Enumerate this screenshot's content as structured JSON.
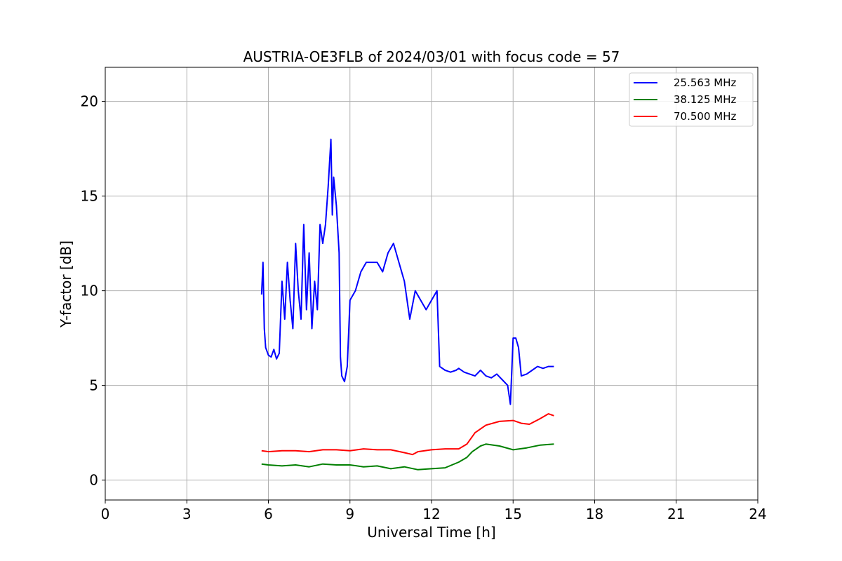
{
  "chart_data": {
    "type": "line",
    "title": "AUSTRIA-OE3FLB of 2024/03/01 with focus code = 57",
    "xlabel": "Universal Time [h]",
    "ylabel": "Y-factor [dB]",
    "xlim": [
      0,
      24
    ],
    "ylim": [
      -1.05,
      21.8
    ],
    "xticks": [
      0,
      3,
      6,
      9,
      12,
      15,
      18,
      21,
      24
    ],
    "xtick_labels": [
      "0",
      "3",
      "6",
      "9",
      "12",
      "15",
      "18",
      "21",
      "24"
    ],
    "yticks": [
      0,
      5,
      10,
      15,
      20
    ],
    "ytick_labels": [
      "0",
      "5",
      "10",
      "15",
      "20"
    ],
    "grid": true,
    "legend_position": "top-right",
    "series": [
      {
        "name": "25.563 MHz",
        "color": "#0000ff",
        "x": [
          5.75,
          5.8,
          5.85,
          5.9,
          6.0,
          6.1,
          6.2,
          6.3,
          6.4,
          6.5,
          6.6,
          6.7,
          6.8,
          6.9,
          7.0,
          7.1,
          7.2,
          7.3,
          7.4,
          7.5,
          7.6,
          7.7,
          7.8,
          7.9,
          8.0,
          8.1,
          8.2,
          8.3,
          8.35,
          8.4,
          8.5,
          8.6,
          8.65,
          8.7,
          8.8,
          8.9,
          9.0,
          9.2,
          9.4,
          9.6,
          9.8,
          10.0,
          10.2,
          10.4,
          10.6,
          10.8,
          11.0,
          11.2,
          11.4,
          11.6,
          11.8,
          12.0,
          12.2,
          12.3,
          12.5,
          12.7,
          12.9,
          13.0,
          13.2,
          13.4,
          13.6,
          13.8,
          14.0,
          14.2,
          14.4,
          14.6,
          14.8,
          14.9,
          15.0,
          15.1,
          15.2,
          15.3,
          15.5,
          15.7,
          15.9,
          16.1,
          16.3,
          16.5
        ],
        "values": [
          9.8,
          11.5,
          8.0,
          7.0,
          6.6,
          6.5,
          6.9,
          6.4,
          6.7,
          10.5,
          8.5,
          11.5,
          9.5,
          8.0,
          12.5,
          10.0,
          8.5,
          13.5,
          9.0,
          12.0,
          8.0,
          10.5,
          9.0,
          13.5,
          12.5,
          13.5,
          15.5,
          18.0,
          14.0,
          16.0,
          14.5,
          12.0,
          6.5,
          5.5,
          5.2,
          6.0,
          9.5,
          10.0,
          11.0,
          11.5,
          11.5,
          11.5,
          11.0,
          12.0,
          12.5,
          11.5,
          10.5,
          8.5,
          10.0,
          9.5,
          9.0,
          9.5,
          10.0,
          6.0,
          5.8,
          5.7,
          5.8,
          5.9,
          5.7,
          5.6,
          5.5,
          5.8,
          5.5,
          5.4,
          5.6,
          5.3,
          5.0,
          4.0,
          7.5,
          7.5,
          7.0,
          5.5,
          5.6,
          5.8,
          6.0,
          5.9,
          6.0,
          6.0
        ]
      },
      {
        "name": "38.125 MHz",
        "color": "#008000",
        "x": [
          5.75,
          6.0,
          6.5,
          7.0,
          7.5,
          8.0,
          8.5,
          9.0,
          9.5,
          10.0,
          10.5,
          11.0,
          11.5,
          12.0,
          12.5,
          13.0,
          13.3,
          13.5,
          13.8,
          14.0,
          14.5,
          15.0,
          15.5,
          16.0,
          16.5
        ],
        "values": [
          0.85,
          0.8,
          0.75,
          0.8,
          0.7,
          0.85,
          0.8,
          0.8,
          0.7,
          0.75,
          0.6,
          0.7,
          0.55,
          0.6,
          0.65,
          0.95,
          1.2,
          1.5,
          1.8,
          1.9,
          1.8,
          1.6,
          1.7,
          1.85,
          1.9
        ]
      },
      {
        "name": "70.500 MHz",
        "color": "#ff0000",
        "x": [
          5.75,
          6.0,
          6.5,
          7.0,
          7.5,
          8.0,
          8.5,
          9.0,
          9.5,
          10.0,
          10.5,
          11.0,
          11.3,
          11.5,
          12.0,
          12.5,
          13.0,
          13.3,
          13.6,
          14.0,
          14.5,
          15.0,
          15.3,
          15.6,
          16.0,
          16.3,
          16.5
        ],
        "values": [
          1.55,
          1.5,
          1.55,
          1.55,
          1.5,
          1.6,
          1.6,
          1.55,
          1.65,
          1.6,
          1.6,
          1.45,
          1.35,
          1.5,
          1.6,
          1.65,
          1.65,
          1.9,
          2.5,
          2.9,
          3.1,
          3.15,
          3.0,
          2.95,
          3.25,
          3.5,
          3.4
        ]
      }
    ]
  }
}
